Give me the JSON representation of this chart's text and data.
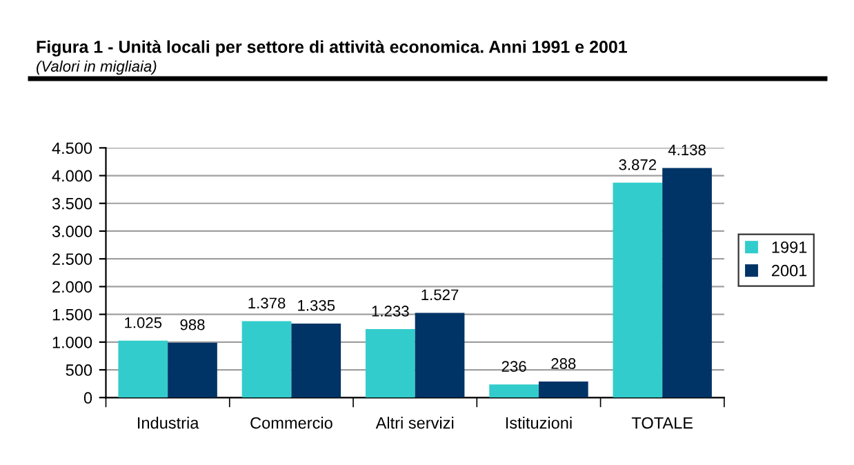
{
  "chart_data": {
    "type": "bar",
    "title": "Figura 1 - Unità locali per settore di attività economica. Anni 1991 e 2001",
    "subtitle": "(Valori in migliaia)",
    "categories": [
      "Industria",
      "Commercio",
      "Altri servizi",
      "Istituzioni",
      "TOTALE"
    ],
    "series": [
      {
        "name": "1991",
        "color": "#33cccc",
        "values": [
          1025,
          1378,
          1233,
          236,
          3872
        ],
        "value_labels": [
          "1.025",
          "1.378",
          "1.233",
          "236",
          "3.872"
        ]
      },
      {
        "name": "2001",
        "color": "#003366",
        "values": [
          988,
          1335,
          1527,
          288,
          4138
        ],
        "value_labels": [
          "988",
          "1.335",
          "1.527",
          "288",
          "4.138"
        ]
      }
    ],
    "ylim": [
      0,
      4500
    ],
    "yticks": [
      0,
      500,
      {
        "value": 1000,
        "label": "1.000"
      },
      {
        "value": 1500,
        "label": "1.500"
      },
      {
        "value": 2000,
        "label": "2.000"
      },
      {
        "value": 2500,
        "label": "2.500"
      },
      {
        "value": 3000,
        "label": "3.000"
      },
      {
        "value": 3500,
        "label": "3.500"
      },
      {
        "value": 4000,
        "label": "4.000"
      },
      {
        "value": 4500,
        "label": "4.500"
      }
    ],
    "grid": "y",
    "legend": "right"
  }
}
